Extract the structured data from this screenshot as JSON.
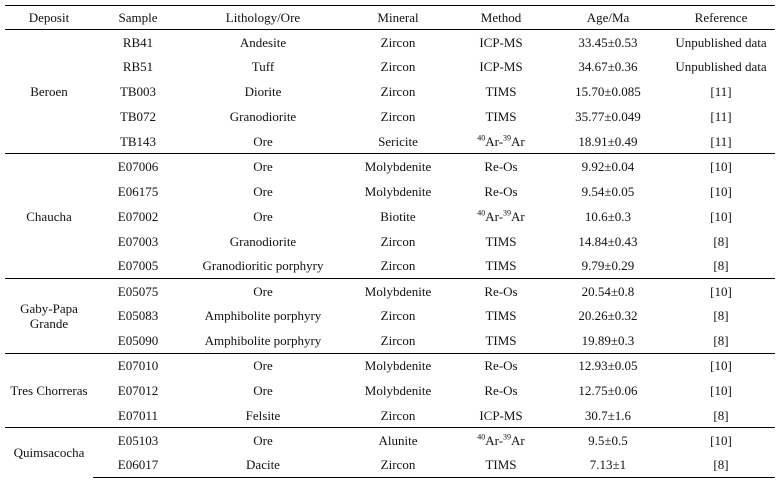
{
  "table": {
    "headers": [
      "Deposit",
      "Sample",
      "Lithology/Ore",
      "Mineral",
      "Method",
      "Age/Ma",
      "Reference"
    ],
    "groups": [
      {
        "deposit": "Beroen",
        "rows": [
          {
            "sample": "RB41",
            "lithology": "Andesite",
            "mineral": "Zircon",
            "method": "ICP-MS",
            "age": "33.45±0.53",
            "reference": "Unpublished data"
          },
          {
            "sample": "RB51",
            "lithology": "Tuff",
            "mineral": "Zircon",
            "method": "ICP-MS",
            "age": "34.67±0.36",
            "reference": "Unpublished data"
          },
          {
            "sample": "TB003",
            "lithology": "Diorite",
            "mineral": "Zircon",
            "method": "TIMS",
            "age": "15.70±0.085",
            "reference": "[11]"
          },
          {
            "sample": "TB072",
            "lithology": "Granodiorite",
            "mineral": "Zircon",
            "method": "TIMS",
            "age": "35.77±0.049",
            "reference": "[11]"
          },
          {
            "sample": "TB143",
            "lithology": "Ore",
            "mineral": "Sericite",
            "method_parts": {
              "sup1": "40",
              "t1": "Ar-",
              "sup2": "39",
              "t2": "Ar"
            },
            "age": "18.91±0.49",
            "reference": "[11]"
          }
        ]
      },
      {
        "deposit": "Chaucha",
        "rows": [
          {
            "sample": "E07006",
            "lithology": "Ore",
            "mineral": "Molybdenite",
            "method": "Re-Os",
            "age": "9.92±0.04",
            "reference": "[10]"
          },
          {
            "sample": "E06175",
            "lithology": "Ore",
            "mineral": "Molybdenite",
            "method": "Re-Os",
            "age": "9.54±0.05",
            "reference": "[10]"
          },
          {
            "sample": "E07002",
            "lithology": "Ore",
            "mineral": "Biotite",
            "method_parts": {
              "sup1": "40",
              "t1": "Ar-",
              "sup2": "39",
              "t2": "Ar"
            },
            "age": "10.6±0.3",
            "reference": "[10]"
          },
          {
            "sample": "E07003",
            "lithology": "Granodiorite",
            "mineral": "Zircon",
            "method": "TIMS",
            "age": "14.84±0.43",
            "reference": "[8]"
          },
          {
            "sample": "E07005",
            "lithology": "Granodioritic porphyry",
            "mineral": "Zircon",
            "method": "TIMS",
            "age": "9.79±0.29",
            "reference": "[8]"
          }
        ]
      },
      {
        "deposit": "Gaby-Papa Grande",
        "deposit_line1": "Gaby-Papa",
        "deposit_line2": "Grande",
        "rows": [
          {
            "sample": "E05075",
            "lithology": "Ore",
            "mineral": "Molybdenite",
            "method": "Re-Os",
            "age": "20.54±0.8",
            "reference": "[10]"
          },
          {
            "sample": "E05083",
            "lithology": "Amphibolite porphyry",
            "mineral": "Zircon",
            "method": "TIMS",
            "age": "20.26±0.32",
            "reference": "[8]"
          },
          {
            "sample": "E05090",
            "lithology": "Amphibolite porphyry",
            "mineral": "Zircon",
            "method": "TIMS",
            "age": "19.89±0.3",
            "reference": "[8]"
          }
        ]
      },
      {
        "deposit": "Tres Chorreras",
        "rows": [
          {
            "sample": "E07010",
            "lithology": "Ore",
            "mineral": "Molybdenite",
            "method": "Re-Os",
            "age": "12.93±0.05",
            "reference": "[10]"
          },
          {
            "sample": "E07012",
            "lithology": "Ore",
            "mineral": "Molybdenite",
            "method": "Re-Os",
            "age": "12.75±0.06",
            "reference": "[10]"
          },
          {
            "sample": "E07011",
            "lithology": "Felsite",
            "mineral": "Zircon",
            "method": "ICP-MS",
            "age": "30.7±1.6",
            "reference": "[8]"
          }
        ]
      },
      {
        "deposit": "Quimsacocha",
        "rows": [
          {
            "sample": "E05103",
            "lithology": "Ore",
            "mineral": "Alunite",
            "method_parts": {
              "sup1": "40",
              "t1": "Ar-",
              "sup2": "39",
              "t2": "Ar"
            },
            "age": "9.5±0.5",
            "reference": "[10]"
          },
          {
            "sample": "E06017",
            "lithology": "Dacite",
            "mineral": "Zircon",
            "method": "TIMS",
            "age": "7.13±1",
            "reference": "[8]"
          }
        ]
      }
    ]
  }
}
